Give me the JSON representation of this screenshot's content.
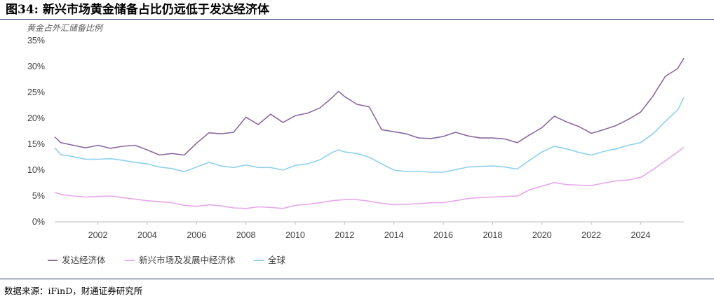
{
  "figure": {
    "title": "图34: 新兴市场黄金储备占比仍远低于发达经济体",
    "source": "数据来源：iFinD，财通证券研究所"
  },
  "colors": {
    "developed": "#8b6a9e",
    "emerging": "#e6a8ea",
    "global": "#8fd0ee",
    "axis": "#bfbfbf",
    "rule": "#1f3a6b"
  },
  "chart_data": {
    "type": "line",
    "title": "",
    "ylabel": "黄金占外汇储备比例",
    "xlabel": "",
    "xlim": [
      2000.25,
      2025.75
    ],
    "ylim": [
      0,
      35
    ],
    "x_ticks": [
      2002,
      2004,
      2006,
      2008,
      2010,
      2012,
      2014,
      2016,
      2018,
      2020,
      2022,
      2024
    ],
    "y_ticks": [
      0,
      5,
      10,
      15,
      20,
      25,
      30,
      35
    ],
    "y_tick_labels": [
      "0%",
      "5%",
      "10%",
      "15%",
      "20%",
      "25%",
      "30%",
      "35%"
    ],
    "grid": false,
    "legend_position": "bottom-left",
    "x": [
      2000.25,
      2000.5,
      2001.0,
      2001.5,
      2002.0,
      2002.5,
      2003.0,
      2003.5,
      2004.0,
      2004.5,
      2005.0,
      2005.5,
      2006.0,
      2006.5,
      2007.0,
      2007.5,
      2008.0,
      2008.5,
      2009.0,
      2009.5,
      2010.0,
      2010.5,
      2011.0,
      2011.5,
      2011.75,
      2012.0,
      2012.5,
      2013.0,
      2013.5,
      2014.0,
      2014.5,
      2015.0,
      2015.5,
      2016.0,
      2016.5,
      2017.0,
      2017.5,
      2018.0,
      2018.5,
      2019.0,
      2019.5,
      2020.0,
      2020.5,
      2021.0,
      2021.5,
      2022.0,
      2022.5,
      2023.0,
      2023.5,
      2024.0,
      2024.5,
      2025.0,
      2025.5,
      2025.75
    ],
    "series": [
      {
        "name": "发达经济体",
        "values": [
          16.4,
          15.3,
          14.8,
          14.3,
          14.8,
          14.2,
          14.6,
          14.8,
          13.9,
          12.9,
          13.2,
          12.9,
          15.2,
          17.2,
          17.0,
          17.3,
          20.2,
          18.8,
          20.8,
          19.2,
          20.5,
          21.0,
          22.0,
          24.0,
          25.2,
          24.2,
          22.7,
          22.2,
          17.8,
          17.4,
          17.0,
          16.2,
          16.1,
          16.5,
          17.3,
          16.6,
          16.2,
          16.2,
          16.0,
          15.3,
          16.8,
          18.2,
          20.4,
          19.3,
          18.4,
          17.1,
          17.8,
          18.6,
          19.8,
          21.2,
          24.3,
          28.1,
          29.6,
          31.6
        ]
      },
      {
        "name": "新兴市场及发展中经济体",
        "values": [
          5.7,
          5.3,
          5.0,
          4.8,
          4.9,
          5.0,
          4.7,
          4.4,
          4.1,
          3.9,
          3.7,
          3.2,
          3.0,
          3.3,
          3.1,
          2.7,
          2.6,
          2.9,
          2.8,
          2.6,
          3.2,
          3.4,
          3.7,
          4.1,
          4.2,
          4.3,
          4.3,
          4.0,
          3.6,
          3.3,
          3.4,
          3.5,
          3.7,
          3.7,
          4.1,
          4.5,
          4.7,
          4.8,
          4.9,
          5.0,
          6.2,
          6.9,
          7.6,
          7.2,
          7.1,
          7.0,
          7.5,
          7.9,
          8.1,
          8.6,
          10.1,
          11.8,
          13.5,
          14.4
        ]
      },
      {
        "name": "全球",
        "values": [
          14.3,
          13.0,
          12.6,
          12.1,
          12.1,
          12.2,
          11.9,
          11.5,
          11.2,
          10.6,
          10.3,
          9.7,
          10.6,
          11.5,
          10.8,
          10.5,
          11.0,
          10.5,
          10.5,
          10.0,
          10.9,
          11.2,
          12.0,
          13.4,
          13.9,
          13.5,
          13.2,
          12.5,
          11.2,
          10.0,
          9.7,
          9.8,
          9.6,
          9.6,
          10.1,
          10.6,
          10.7,
          10.8,
          10.6,
          10.2,
          11.9,
          13.5,
          14.6,
          14.1,
          13.4,
          12.9,
          13.6,
          14.1,
          14.8,
          15.3,
          17.0,
          19.4,
          21.6,
          24.0
        ]
      }
    ]
  }
}
